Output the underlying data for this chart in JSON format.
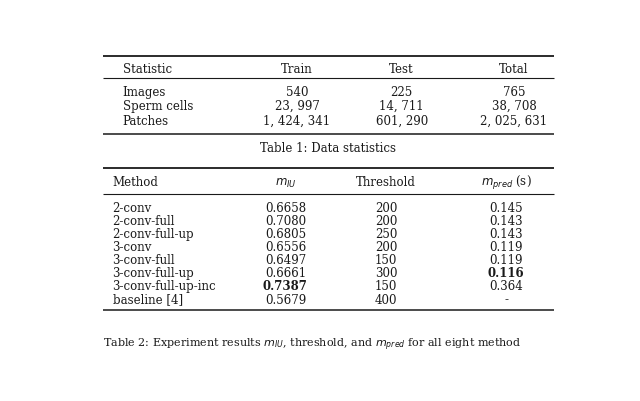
{
  "table1": {
    "headers": [
      "Statistic",
      "Train",
      "Test",
      "Total"
    ],
    "rows": [
      [
        "Images",
        "540",
        "225",
        "765"
      ],
      [
        "Sperm cells",
        "23, 997",
        "14, 711",
        "38, 708"
      ],
      [
        "Patches",
        "1, 424, 341",
        "601, 290",
        "2, 025, 631"
      ]
    ],
    "caption": "Table 1: Data statistics"
  },
  "table2": {
    "headers": [
      "Method",
      "m_IU",
      "Threshold",
      "m_pred_s"
    ],
    "rows": [
      [
        "2-conv",
        "0.6658",
        "200",
        "0.145",
        false,
        false
      ],
      [
        "2-conv-full",
        "0.7080",
        "200",
        "0.143",
        false,
        false
      ],
      [
        "2-conv-full-up",
        "0.6805",
        "250",
        "0.143",
        false,
        false
      ],
      [
        "3-conv",
        "0.6556",
        "200",
        "0.119",
        false,
        false
      ],
      [
        "3-conv-full",
        "0.6497",
        "150",
        "0.119",
        false,
        false
      ],
      [
        "3-conv-full-up",
        "0.6661",
        "300",
        "0.116",
        false,
        true
      ],
      [
        "3-conv-full-up-inc",
        "0.7387",
        "150",
        "0.364",
        true,
        false
      ],
      [
        "baseline [4]",
        "0.5679",
        "400",
        "-",
        false,
        false
      ]
    ]
  },
  "bg_color": "#ffffff",
  "line_color": "#1a1a1a",
  "font_size": 8.5
}
